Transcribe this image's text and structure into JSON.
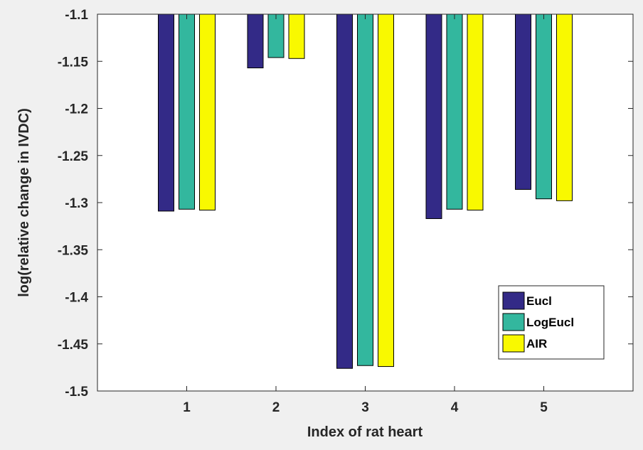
{
  "chart_data": {
    "type": "bar",
    "title": "",
    "xlabel": "Index of rat heart",
    "ylabel": "log(relative change in IVDC)",
    "categories": [
      "1",
      "2",
      "3",
      "4",
      "5"
    ],
    "xlim": [
      0,
      6
    ],
    "ylim": [
      -1.5,
      -1.1
    ],
    "yticks": [
      -1.5,
      -1.45,
      -1.4,
      -1.35,
      -1.3,
      -1.25,
      -1.2,
      -1.15,
      -1.1
    ],
    "ytick_labels": [
      "-1.5",
      "-1.45",
      "-1.4",
      "-1.35",
      "-1.3",
      "-1.25",
      "-1.2",
      "-1.15",
      "-1.1"
    ],
    "bar_base": -1.1,
    "grid": false,
    "legend_position": "lower-right",
    "series": [
      {
        "name": "Eucl",
        "color": "#332a87",
        "values": [
          -1.309,
          -1.157,
          -1.476,
          -1.317,
          -1.286
        ]
      },
      {
        "name": "LogEucl",
        "color": "#33b79e",
        "values": [
          -1.307,
          -1.146,
          -1.473,
          -1.307,
          -1.296
        ]
      },
      {
        "name": "AIR",
        "color": "#f9f900",
        "values": [
          -1.308,
          -1.147,
          -1.474,
          -1.308,
          -1.298
        ]
      }
    ]
  }
}
